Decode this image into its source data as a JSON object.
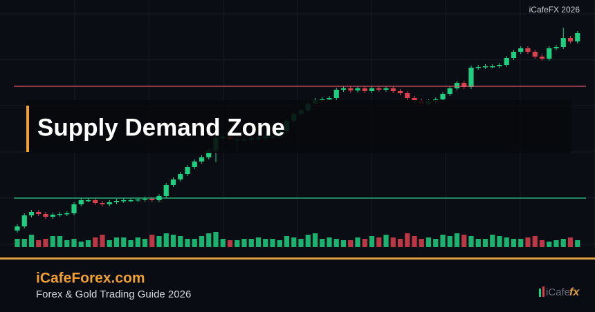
{
  "header": {
    "brand": "iCafeFX 2026"
  },
  "chart_data": {
    "type": "candlestick",
    "title": "Supply Demand Zone",
    "up_color": "#1fcf7f",
    "down_color": "#d9414f",
    "ylim": [
      0,
      340
    ],
    "volume_ylim": [
      0,
      25
    ],
    "supply_level": 235,
    "supply_color": "#e05561",
    "demand_level": 73,
    "demand_color": "#2ecc8a",
    "open": [
      26,
      32,
      48,
      53,
      50,
      46,
      49,
      50,
      51,
      64,
      70,
      70,
      66,
      64,
      67,
      69,
      70,
      70,
      71,
      72,
      70,
      76,
      92,
      100,
      108,
      118,
      126,
      132,
      142,
      160,
      162,
      158,
      158,
      158,
      160,
      160,
      162,
      162,
      170,
      185,
      195,
      200,
      210,
      215,
      216,
      218,
      230,
      232,
      229,
      232,
      228,
      232,
      230,
      232,
      228,
      225,
      218,
      214,
      210,
      213,
      216,
      224,
      232,
      240,
      234,
      262,
      263,
      264,
      264,
      266,
      276,
      285,
      290,
      285,
      278,
      275,
      290,
      292,
      305,
      300
    ],
    "high": [
      35,
      51,
      56,
      56,
      53,
      52,
      53,
      54,
      67,
      73,
      73,
      73,
      69,
      70,
      72,
      73,
      73,
      74,
      75,
      75,
      79,
      95,
      103,
      111,
      121,
      129,
      135,
      145,
      163,
      165,
      165,
      161,
      161,
      163,
      163,
      165,
      165,
      173,
      188,
      198,
      203,
      213,
      218,
      219,
      221,
      233,
      235,
      235,
      235,
      235,
      235,
      235,
      235,
      235,
      231,
      228,
      221,
      217,
      216,
      219,
      227,
      235,
      243,
      243,
      265,
      266,
      267,
      267,
      269,
      279,
      288,
      293,
      293,
      288,
      281,
      293,
      295,
      320,
      308,
      315
    ],
    "low": [
      23,
      29,
      45,
      47,
      43,
      43,
      46,
      47,
      48,
      61,
      67,
      63,
      61,
      61,
      64,
      66,
      67,
      67,
      68,
      67,
      67,
      73,
      89,
      97,
      105,
      115,
      123,
      129,
      125,
      157,
      155,
      140,
      155,
      155,
      157,
      157,
      159,
      159,
      167,
      182,
      192,
      197,
      207,
      212,
      213,
      215,
      227,
      226,
      226,
      225,
      225,
      227,
      227,
      225,
      222,
      215,
      211,
      207,
      207,
      210,
      213,
      221,
      229,
      231,
      231,
      259,
      260,
      261,
      261,
      263,
      273,
      282,
      282,
      275,
      272,
      272,
      287,
      289,
      297,
      297
    ],
    "close": [
      32,
      48,
      53,
      50,
      46,
      49,
      50,
      51,
      64,
      70,
      70,
      66,
      64,
      67,
      69,
      70,
      70,
      71,
      72,
      70,
      76,
      92,
      100,
      108,
      118,
      126,
      132,
      142,
      160,
      162,
      158,
      158,
      158,
      160,
      160,
      162,
      162,
      170,
      185,
      195,
      200,
      210,
      215,
      216,
      218,
      230,
      232,
      229,
      232,
      228,
      232,
      230,
      232,
      228,
      225,
      218,
      214,
      210,
      213,
      216,
      224,
      232,
      240,
      234,
      262,
      263,
      264,
      264,
      266,
      276,
      285,
      290,
      285,
      278,
      275,
      290,
      292,
      305,
      300,
      312
    ],
    "volume": [
      12,
      12,
      18,
      10,
      12,
      16,
      16,
      10,
      12,
      8,
      10,
      14,
      18,
      10,
      14,
      14,
      10,
      14,
      12,
      18,
      16,
      20,
      18,
      16,
      12,
      12,
      16,
      20,
      22,
      12,
      10,
      10,
      12,
      12,
      14,
      12,
      12,
      10,
      16,
      14,
      12,
      18,
      20,
      12,
      14,
      12,
      10,
      10,
      14,
      12,
      16,
      14,
      18,
      14,
      12,
      20,
      16,
      12,
      14,
      12,
      18,
      16,
      20,
      18,
      16,
      12,
      12,
      18,
      16,
      14,
      12,
      12,
      14,
      16,
      10,
      8,
      10,
      12,
      14,
      10
    ]
  },
  "footer": {
    "site": "iCafeForex.com",
    "subtitle": "Forex & Gold Trading Guide 2026",
    "logo_text": "iCafe",
    "logo_fx": "fx"
  }
}
